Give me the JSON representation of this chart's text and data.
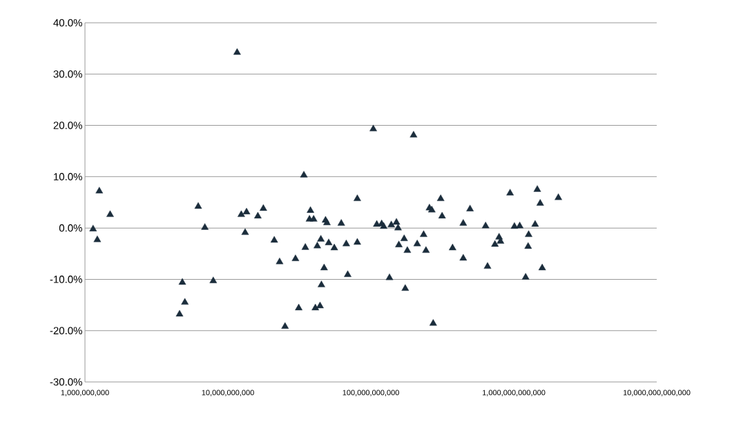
{
  "chart_data": {
    "type": "scatter",
    "color": "#1b2d3c",
    "marker": "triangle",
    "log": "x",
    "grid": "y",
    "xlim": [
      1000000000.0,
      10000000000000.0
    ],
    "ylim": [
      -30,
      40
    ],
    "xticks": [
      {
        "value": 1000000000.0,
        "label": "1,000,000,000"
      },
      {
        "value": 10000000000.0,
        "label": "10,000,000,000"
      },
      {
        "value": 100000000000.0,
        "label": "100,000,000,000"
      },
      {
        "value": 1000000000000.0,
        "label": "1,000,000,000,000"
      },
      {
        "value": 10000000000000.0,
        "label": "10,000,000,000,000"
      }
    ],
    "yticks": [
      {
        "value": -30,
        "label": "-30.0%"
      },
      {
        "value": -20,
        "label": "-20.0%"
      },
      {
        "value": -10,
        "label": "-10.0%"
      },
      {
        "value": 0,
        "label": "0.0%"
      },
      {
        "value": 10,
        "label": "10.0%"
      },
      {
        "value": 20,
        "label": "20.0%"
      },
      {
        "value": 30,
        "label": "30.0%"
      },
      {
        "value": 40,
        "label": "40.0%"
      }
    ],
    "x": [
      1140000000.0,
      1260000000.0,
      1220000000.0,
      1500000000.0,
      4590000000.0,
      4800000000.0,
      5000000000.0,
      6200000000.0,
      6900000000.0,
      7900000000.0,
      11600000000.0,
      12400000000.0,
      13500000000.0,
      13200000000.0,
      16200000000.0,
      17700000000.0,
      21100000000.0,
      23000000000.0,
      25100000000.0,
      29700000000.0,
      31300000000.0,
      34000000000.0,
      34800000000.0,
      37800000000.0,
      37200000000.0,
      39800000000.0,
      40900000000.0,
      42200000000.0,
      44100000000.0,
      44700000000.0,
      45100000000.0,
      47100000000.0,
      48200000000.0,
      49300000000.0,
      50700000000.0,
      55500000000.0,
      62100000000.0,
      67300000000.0,
      68900000000.0,
      80400000000.0,
      80400000000.0,
      104000000000.0,
      110000000000.0,
      119000000000.0,
      123000000000.0,
      135000000000.0,
      139000000000.0,
      151000000000.0,
      155000000000.0,
      157000000000.0,
      171000000000.0,
      174000000000.0,
      180000000000.0,
      199000000000.0,
      211000000000.0,
      234000000000.0,
      243000000000.0,
      257000000000.0,
      267000000000.0,
      273000000000.0,
      308000000000.0,
      315000000000.0,
      373000000000.0,
      443000000000.0,
      443000000000.0,
      494000000000.0,
      635000000000.0,
      655000000000.0,
      738000000000.0,
      789000000000.0,
      807000000000.0,
      942000000000.0,
      1010000000000.0,
      1100000000000.0,
      1210000000000.0,
      1260000000000.0,
      1270000000000.0,
      1410000000000.0,
      1460000000000.0,
      1530000000000.0,
      1580000000000.0,
      2050000000000.0
    ],
    "values": [
      -0.2,
      7.2,
      -2.3,
      2.6,
      -16.8,
      -10.6,
      -14.5,
      4.2,
      0.1,
      -10.3,
      34.2,
      2.6,
      3.1,
      -0.9,
      2.3,
      3.8,
      -2.4,
      -6.6,
      -19.2,
      -6.0,
      -15.6,
      10.3,
      -3.8,
      3.4,
      1.7,
      1.7,
      -15.6,
      -3.5,
      -15.2,
      -2.2,
      -11.1,
      -7.8,
      1.5,
      1.0,
      -2.9,
      -3.9,
      0.9,
      -3.1,
      -9.1,
      5.7,
      -2.8,
      19.3,
      0.7,
      0.8,
      0.3,
      -9.7,
      0.6,
      1.1,
      0.0,
      -3.3,
      -2.1,
      -11.8,
      -4.4,
      18.1,
      -3.1,
      -1.3,
      -4.4,
      3.9,
      3.5,
      -18.6,
      5.7,
      2.3,
      -3.9,
      0.9,
      -5.9,
      3.7,
      0.4,
      -7.5,
      -3.2,
      -1.8,
      -2.6,
      6.8,
      0.3,
      0.4,
      -9.6,
      -3.6,
      -1.3,
      0.7,
      7.5,
      4.8,
      -7.8,
      5.9
    ]
  }
}
